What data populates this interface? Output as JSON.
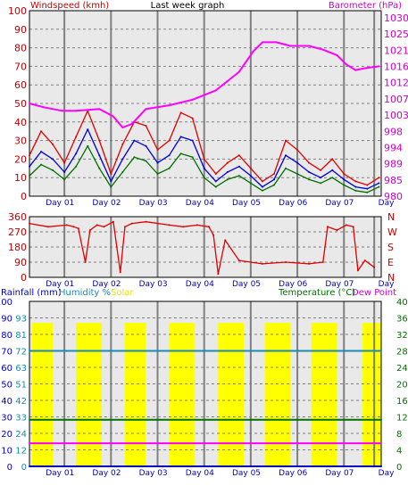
{
  "colors": {
    "background": "#ffffff",
    "panel_bg": "#e9e9e9",
    "grid": "#808080",
    "divider": "#808080",
    "windspeed": "#e00000",
    "gust_blue": "#0000d8",
    "wind_green": "#007000",
    "barometer": "#ff00ff",
    "direction": "#e00000",
    "rainfall": "#0000c0",
    "humidity": "#1a8ab4",
    "solar": "#ffff00",
    "temperature": "#007000",
    "dewpoint": "#ff00ff",
    "axis_text_blue": "#0000c0",
    "axis_text_red": "#c00000",
    "axis_text_magenta": "#cc00cc",
    "axis_text_green": "#007000"
  },
  "days": [
    "Day 01",
    "Day 02",
    "Day 03",
    "Day 04",
    "Day 05",
    "Day 06",
    "Day 07",
    "Day"
  ],
  "top": {
    "title_left": "Windspeed (kmh)",
    "title_center": "Last week graph",
    "title_right": "Barometer (hPa)",
    "left_ticks": [
      "100",
      "90",
      "80",
      "70",
      "60",
      "50",
      "40",
      "30",
      "20",
      "10",
      "0"
    ],
    "right_ticks": [
      "1030",
      "1025",
      "1021",
      "1016",
      "1012",
      "1007",
      "1003",
      "998",
      "994",
      "989",
      "985",
      "980"
    ]
  },
  "mid": {
    "left_ticks": [
      "360",
      "270",
      "180",
      "90",
      "0"
    ],
    "right_labels": [
      "N",
      "W",
      "S",
      "E",
      "N"
    ]
  },
  "bottom": {
    "label_rain": "Rainfall (mm)",
    "label_humidity": "Humidity %",
    "label_solar": "Solar",
    "label_temperature": "Temperature (°C)",
    "label_dewpoint": "Dew Point",
    "left_ticks_rain": [
      "100",
      "90",
      "80",
      "70",
      "60",
      "50",
      "40",
      "30",
      "20",
      "10",
      "0"
    ],
    "left_ticks_humidity": [
      "",
      "93",
      "81",
      "72",
      "63",
      "51",
      "42",
      "33",
      "24",
      "12",
      "0"
    ],
    "right_ticks": [
      "40",
      "36",
      "32",
      "28",
      "24",
      "20",
      "16",
      "12",
      "8",
      "4",
      "0"
    ]
  },
  "chart_data": [
    {
      "type": "line",
      "title": "Last week graph",
      "categories": [
        "Day 01",
        "Day 02",
        "Day 03",
        "Day 04",
        "Day 05",
        "Day 06",
        "Day 07",
        "Day"
      ],
      "ylabel": "Windspeed (kmh)",
      "ylim": [
        0,
        100
      ],
      "y2label": "Barometer (hPa)",
      "y2lim": [
        980,
        1030
      ],
      "series": [
        {
          "name": "Windspeed (kmh)",
          "axis": "left",
          "x": [
            0.0,
            0.25,
            0.5,
            0.75,
            1.0,
            1.25,
            1.5,
            1.75,
            2.0,
            2.25,
            2.5,
            2.75,
            3.0,
            3.25,
            3.5,
            3.75,
            4.0,
            4.25,
            4.5,
            4.75,
            5.0,
            5.25,
            5.5,
            5.75,
            6.0,
            6.25,
            6.5,
            6.75,
            7.0,
            7.25,
            7.5
          ],
          "y": [
            22,
            35,
            28,
            18,
            32,
            46,
            30,
            12,
            28,
            40,
            38,
            25,
            30,
            45,
            42,
            20,
            12,
            18,
            22,
            15,
            8,
            12,
            30,
            25,
            18,
            14,
            20,
            12,
            8,
            6,
            10
          ]
        },
        {
          "name": "Wind (blue)",
          "axis": "left",
          "x": [
            0.0,
            0.25,
            0.5,
            0.75,
            1.0,
            1.25,
            1.5,
            1.75,
            2.0,
            2.25,
            2.5,
            2.75,
            3.0,
            3.25,
            3.5,
            3.75,
            4.0,
            4.25,
            4.5,
            4.75,
            5.0,
            5.25,
            5.5,
            5.75,
            6.0,
            6.25,
            6.5,
            6.75,
            7.0,
            7.25,
            7.5
          ],
          "y": [
            16,
            24,
            20,
            13,
            23,
            36,
            22,
            8,
            20,
            30,
            27,
            18,
            22,
            32,
            30,
            15,
            8,
            13,
            16,
            11,
            5,
            9,
            22,
            18,
            13,
            10,
            14,
            9,
            5,
            4,
            7
          ]
        },
        {
          "name": "Wind (green)",
          "axis": "left",
          "x": [
            0.0,
            0.25,
            0.5,
            0.75,
            1.0,
            1.25,
            1.5,
            1.75,
            2.0,
            2.25,
            2.5,
            2.75,
            3.0,
            3.25,
            3.5,
            3.75,
            4.0,
            4.25,
            4.5,
            4.75,
            5.0,
            5.25,
            5.5,
            5.75,
            6.0,
            6.25,
            6.5,
            6.75,
            7.0,
            7.25,
            7.5
          ],
          "y": [
            11,
            17,
            14,
            9,
            16,
            27,
            15,
            5,
            13,
            21,
            19,
            12,
            15,
            23,
            21,
            10,
            5,
            9,
            11,
            7,
            3,
            6,
            15,
            12,
            9,
            7,
            10,
            6,
            3,
            2,
            5
          ]
        },
        {
          "name": "Barometer (hPa)",
          "axis": "right",
          "x": [
            0.0,
            0.3,
            0.7,
            1.0,
            1.5,
            1.8,
            2.0,
            2.2,
            2.5,
            3.0,
            3.5,
            4.0,
            4.5,
            4.8,
            5.0,
            5.3,
            5.6,
            6.0,
            6.3,
            6.6,
            6.8,
            7.0,
            7.2,
            7.5
          ],
          "y": [
            1005,
            1004,
            1003,
            1003,
            1003.5,
            1001.5,
            998.5,
            999.5,
            1003.5,
            1004.5,
            1006,
            1008.5,
            1013.5,
            1019,
            1021.5,
            1021.5,
            1020.5,
            1020.5,
            1019.5,
            1018,
            1015.5,
            1014,
            1014.5,
            1015
          ]
        }
      ]
    },
    {
      "type": "line",
      "categories": [
        "Day 01",
        "Day 02",
        "Day 03",
        "Day 04",
        "Day 05",
        "Day 06",
        "Day 07",
        "Day"
      ],
      "ylim": [
        0,
        360
      ],
      "series": [
        {
          "name": "Wind direction",
          "x": [
            0.0,
            0.4,
            0.8,
            0.95,
            1.05,
            1.2,
            1.3,
            1.45,
            1.6,
            1.8,
            1.95,
            2.05,
            2.2,
            2.5,
            3.0,
            3.3,
            3.6,
            3.85,
            3.95,
            4.05,
            4.2,
            4.5,
            5.0,
            5.5,
            6.0,
            6.3,
            6.4,
            6.6,
            6.8,
            6.95,
            7.05,
            7.2,
            7.4
          ],
          "y": [
            320,
            300,
            310,
            300,
            290,
            90,
            280,
            310,
            300,
            330,
            30,
            300,
            320,
            330,
            310,
            300,
            310,
            300,
            250,
            20,
            220,
            100,
            80,
            90,
            80,
            90,
            300,
            280,
            310,
            300,
            40,
            100,
            60
          ]
        }
      ]
    },
    {
      "type": "line",
      "categories": [
        "Day 01",
        "Day 02",
        "Day 03",
        "Day 04",
        "Day 05",
        "Day 06",
        "Day 07",
        "Day"
      ],
      "ylim": [
        0,
        100
      ],
      "y2label": "Temperature (°C)",
      "y2lim": [
        0,
        40
      ],
      "series": [
        {
          "name": "Solar",
          "kind": "bands",
          "level": 87,
          "x_ranges": [
            [
              0.05,
              0.5
            ],
            [
              1.0,
              1.55
            ],
            [
              2.05,
              2.5
            ],
            [
              3.0,
              3.55
            ],
            [
              4.05,
              4.6
            ],
            [
              5.05,
              5.6
            ],
            [
              6.05,
              6.6
            ],
            [
              7.15,
              7.55
            ]
          ]
        },
        {
          "name": "Rainfall (mm)",
          "axis": "left",
          "x": [
            0,
            7.55
          ],
          "y": [
            0,
            0
          ]
        },
        {
          "name": "Humidity %",
          "axis": "left",
          "x": [
            0,
            7.55
          ],
          "y": [
            70,
            70
          ]
        },
        {
          "name": "Temperature (°C)",
          "axis": "right",
          "x": [
            0,
            7.55
          ],
          "y": [
            11.3,
            11.3
          ]
        },
        {
          "name": "Dew Point",
          "axis": "right",
          "x": [
            0,
            7.55
          ],
          "y": [
            5.6,
            5.6
          ]
        }
      ]
    }
  ]
}
